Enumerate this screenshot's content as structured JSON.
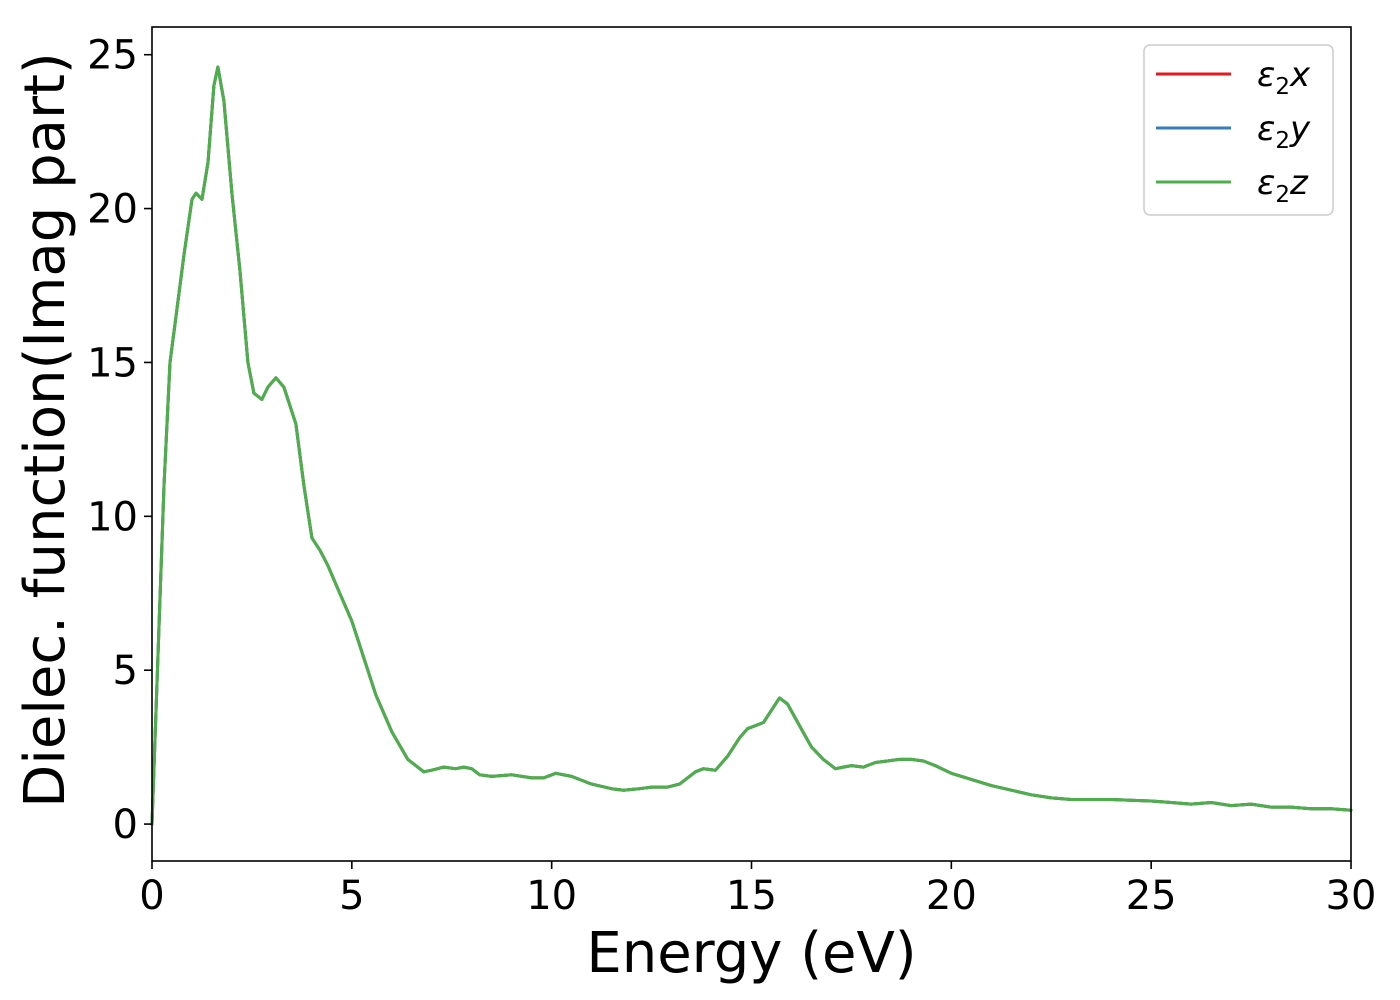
{
  "chart_data": {
    "type": "line",
    "xlabel": "Energy (eV)",
    "ylabel": "Dielec. function(Imag part)",
    "xlim": [
      0,
      30
    ],
    "ylim": [
      -1.2,
      25.9
    ],
    "xticks": [
      0,
      5,
      10,
      15,
      20,
      25,
      30
    ],
    "yticks": [
      0,
      5,
      10,
      15,
      20,
      25
    ],
    "grid": false,
    "legend_position": "top-right",
    "x": [
      0,
      0.15,
      0.3,
      0.45,
      0.6,
      0.8,
      1.0,
      1.1,
      1.25,
      1.4,
      1.55,
      1.65,
      1.8,
      2.0,
      2.2,
      2.4,
      2.55,
      2.75,
      2.9,
      3.1,
      3.3,
      3.6,
      3.8,
      4.0,
      4.2,
      4.4,
      4.7,
      5.0,
      5.3,
      5.6,
      6.0,
      6.4,
      6.8,
      7.0,
      7.3,
      7.6,
      7.8,
      8.0,
      8.2,
      8.5,
      9.0,
      9.5,
      9.8,
      10.1,
      10.5,
      11.0,
      11.5,
      11.8,
      12.2,
      12.5,
      12.9,
      13.2,
      13.6,
      13.8,
      14.1,
      14.4,
      14.7,
      14.9,
      15.1,
      15.3,
      15.5,
      15.7,
      15.9,
      16.2,
      16.5,
      16.8,
      17.1,
      17.3,
      17.5,
      17.8,
      18.1,
      18.4,
      18.7,
      19.0,
      19.3,
      19.6,
      20.0,
      20.5,
      21.0,
      21.5,
      22.0,
      22.5,
      23.0,
      24.0,
      25.0,
      25.5,
      26.0,
      26.5,
      27.0,
      27.5,
      28.0,
      28.5,
      29.0,
      29.5,
      30.0
    ],
    "series": [
      {
        "name": "ε2x",
        "color": "#e41a1c",
        "values": [
          0,
          5.5,
          11.0,
          15.0,
          16.5,
          18.5,
          20.3,
          20.5,
          20.3,
          21.5,
          24.0,
          24.6,
          23.5,
          20.5,
          18.0,
          15.0,
          14.0,
          13.8,
          14.2,
          14.5,
          14.2,
          13.0,
          11.0,
          9.3,
          8.9,
          8.4,
          7.5,
          6.6,
          5.4,
          4.2,
          3.0,
          2.1,
          1.7,
          1.75,
          1.85,
          1.8,
          1.85,
          1.8,
          1.6,
          1.55,
          1.6,
          1.5,
          1.5,
          1.65,
          1.55,
          1.3,
          1.15,
          1.1,
          1.15,
          1.2,
          1.2,
          1.3,
          1.7,
          1.8,
          1.75,
          2.2,
          2.8,
          3.1,
          3.2,
          3.3,
          3.7,
          4.1,
          3.9,
          3.2,
          2.5,
          2.1,
          1.8,
          1.85,
          1.9,
          1.85,
          2.0,
          2.05,
          2.1,
          2.1,
          2.05,
          1.9,
          1.65,
          1.45,
          1.25,
          1.1,
          0.95,
          0.85,
          0.8,
          0.8,
          0.75,
          0.7,
          0.65,
          0.7,
          0.6,
          0.65,
          0.55,
          0.55,
          0.5,
          0.5,
          0.45
        ]
      },
      {
        "name": "ε2y",
        "color": "#377eb8",
        "values": [
          0,
          5.5,
          11.0,
          15.0,
          16.5,
          18.5,
          20.3,
          20.5,
          20.3,
          21.5,
          24.0,
          24.6,
          23.5,
          20.5,
          18.0,
          15.0,
          14.0,
          13.8,
          14.2,
          14.5,
          14.2,
          13.0,
          11.0,
          9.3,
          8.9,
          8.4,
          7.5,
          6.6,
          5.4,
          4.2,
          3.0,
          2.1,
          1.7,
          1.75,
          1.85,
          1.8,
          1.85,
          1.8,
          1.6,
          1.55,
          1.6,
          1.5,
          1.5,
          1.65,
          1.55,
          1.3,
          1.15,
          1.1,
          1.15,
          1.2,
          1.2,
          1.3,
          1.7,
          1.8,
          1.75,
          2.2,
          2.8,
          3.1,
          3.2,
          3.3,
          3.7,
          4.1,
          3.9,
          3.2,
          2.5,
          2.1,
          1.8,
          1.85,
          1.9,
          1.85,
          2.0,
          2.05,
          2.1,
          2.1,
          2.05,
          1.9,
          1.65,
          1.45,
          1.25,
          1.1,
          0.95,
          0.85,
          0.8,
          0.8,
          0.75,
          0.7,
          0.65,
          0.7,
          0.6,
          0.65,
          0.55,
          0.55,
          0.5,
          0.5,
          0.45
        ]
      },
      {
        "name": "ε2z",
        "color": "#4daf4a",
        "values": [
          0,
          5.5,
          11.0,
          15.0,
          16.5,
          18.5,
          20.3,
          20.5,
          20.3,
          21.5,
          24.0,
          24.6,
          23.5,
          20.5,
          18.0,
          15.0,
          14.0,
          13.8,
          14.2,
          14.5,
          14.2,
          13.0,
          11.0,
          9.3,
          8.9,
          8.4,
          7.5,
          6.6,
          5.4,
          4.2,
          3.0,
          2.1,
          1.7,
          1.75,
          1.85,
          1.8,
          1.85,
          1.8,
          1.6,
          1.55,
          1.6,
          1.5,
          1.5,
          1.65,
          1.55,
          1.3,
          1.15,
          1.1,
          1.15,
          1.2,
          1.2,
          1.3,
          1.7,
          1.8,
          1.75,
          2.2,
          2.8,
          3.1,
          3.2,
          3.3,
          3.7,
          4.1,
          3.9,
          3.2,
          2.5,
          2.1,
          1.8,
          1.85,
          1.9,
          1.85,
          2.0,
          2.05,
          2.1,
          2.1,
          2.05,
          1.9,
          1.65,
          1.45,
          1.25,
          1.1,
          0.95,
          0.85,
          0.8,
          0.8,
          0.75,
          0.7,
          0.65,
          0.7,
          0.6,
          0.65,
          0.55,
          0.55,
          0.5,
          0.5,
          0.45
        ]
      }
    ]
  }
}
